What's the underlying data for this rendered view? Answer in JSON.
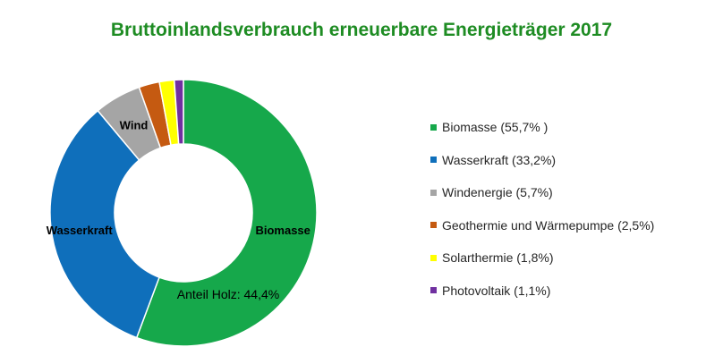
{
  "chart_data": {
    "type": "pie",
    "variant": "doughnut",
    "title": "Bruttoinlandsverbrauch erneuerbare Energieträger 2017",
    "legend_position": "right",
    "series": [
      {
        "legend": "Biomasse (55,7% )",
        "value": 55.7,
        "color": "#16a84b",
        "slice_label": "Biomasse"
      },
      {
        "legend": "Wasserkraft (33,2%)",
        "value": 33.2,
        "color": "#0f6fbb",
        "slice_label": "Wasserkraft"
      },
      {
        "legend": "Windenergie (5,7%)",
        "value": 5.7,
        "color": "#a5a5a5",
        "slice_label": "Wind"
      },
      {
        "legend": "Geothermie und Wärmepumpe (2,5%)",
        "value": 2.5,
        "color": "#c55a11",
        "slice_label": ""
      },
      {
        "legend": "Solarthermie (1,8%)",
        "value": 1.8,
        "color": "#ffff00",
        "slice_label": ""
      },
      {
        "legend": "Photovoltaik (1,1%)",
        "value": 1.1,
        "color": "#7030a0",
        "slice_label": ""
      }
    ],
    "annotation": "Anteil Holz: 44,4%"
  }
}
